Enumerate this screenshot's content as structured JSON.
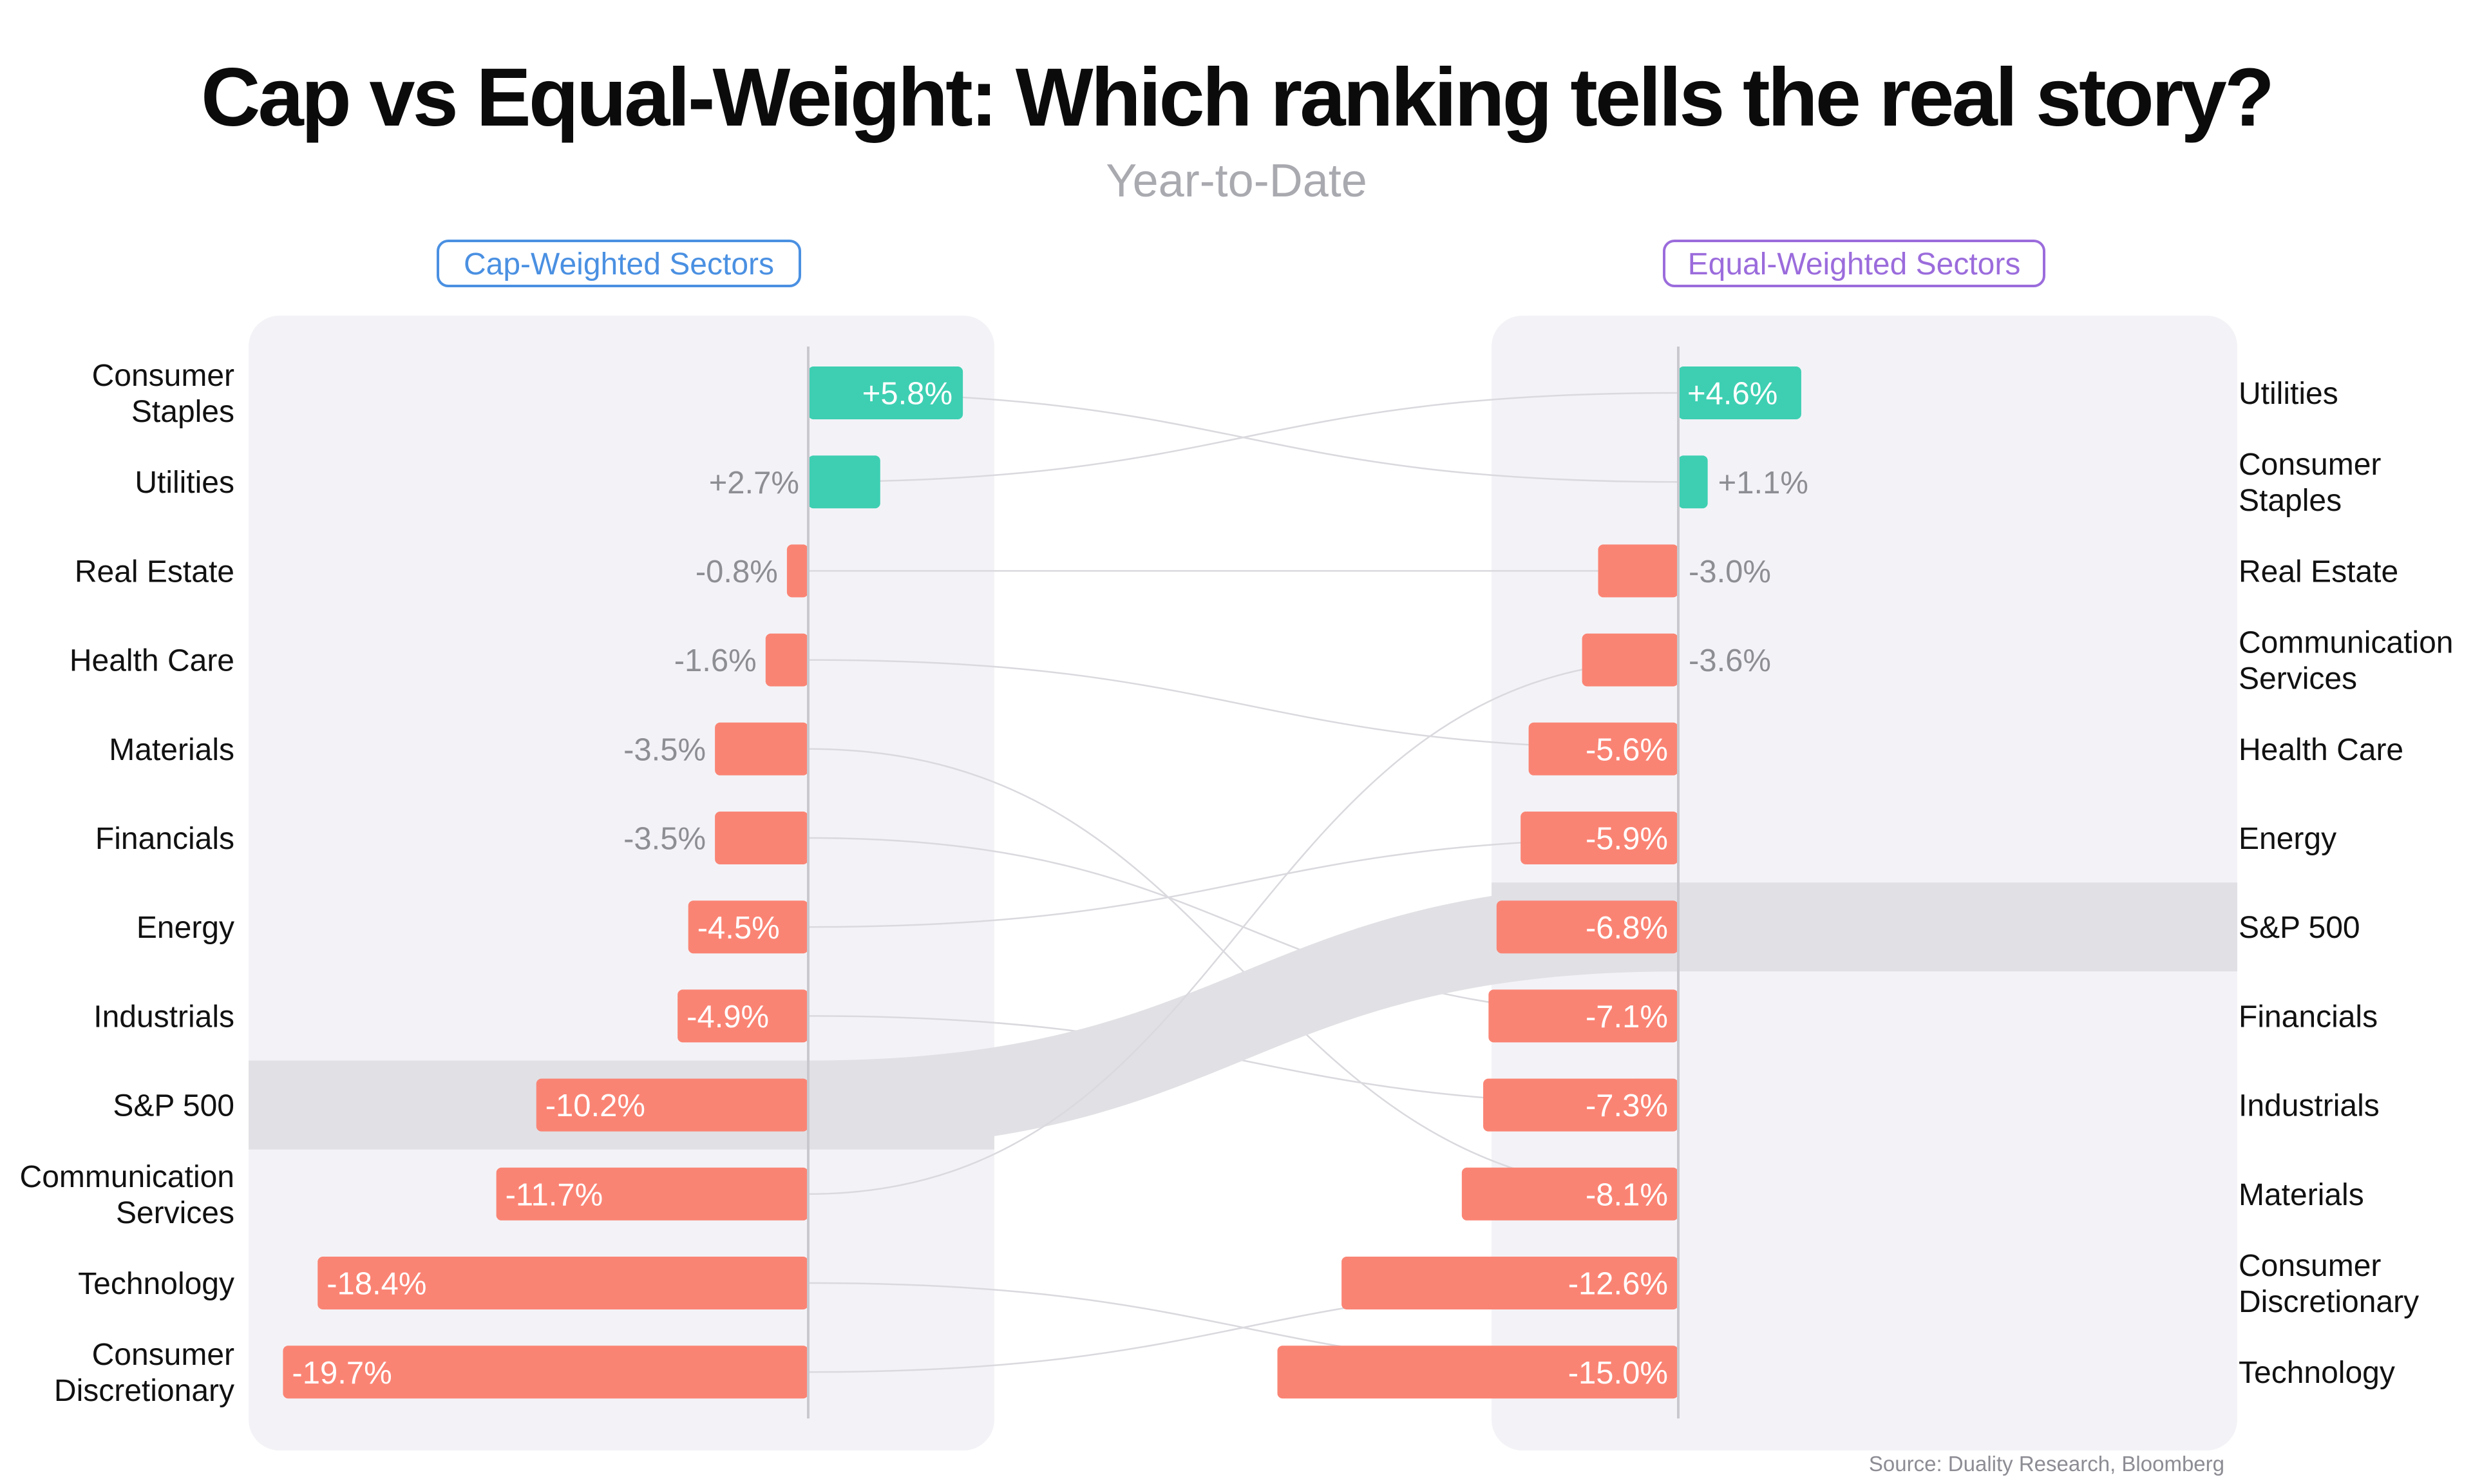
{
  "title": "Cap vs Equal-Weight: Which ranking tells the real story?",
  "subtitle": "Year-to-Date",
  "panels": {
    "cap_label": "Cap-Weighted Sectors",
    "equal_label": "Equal-Weighted Sectors"
  },
  "source": "Source: Duality Research, Bloomberg",
  "colors": {
    "positive": "#3ecfb2",
    "negative": "#fa8474",
    "panel_background": "#f3f3f7",
    "benchmark_band": "#e1e1e5",
    "cap_accent": "#4a90e2",
    "equal_accent": "#9b6cdc"
  },
  "chart_data": [
    {
      "type": "bar",
      "orientation": "horizontal",
      "panel": "Cap-Weighted Sectors",
      "highlight": "S&P 500",
      "categories": [
        "Consumer Staples",
        "Utilities",
        "Real Estate",
        "Health Care",
        "Materials",
        "Financials",
        "Energy",
        "Industrials",
        "S&P 500",
        "Communication Services",
        "Technology",
        "Consumer Discretionary"
      ],
      "values": [
        5.8,
        2.7,
        -0.8,
        -1.6,
        -3.5,
        -3.5,
        -4.5,
        -4.9,
        -10.2,
        -11.7,
        -18.4,
        -19.7
      ],
      "labels": [
        "+5.8%",
        "+2.7%",
        "-0.8%",
        "-1.6%",
        "-3.5%",
        "-3.5%",
        "-4.5%",
        "-4.9%",
        "-10.2%",
        "-11.7%",
        "-18.4%",
        "-19.7%"
      ],
      "xlim": [
        -20,
        6
      ]
    },
    {
      "type": "bar",
      "orientation": "horizontal",
      "panel": "Equal-Weighted Sectors",
      "highlight": "S&P 500",
      "categories": [
        "Utilities",
        "Consumer Staples",
        "Real Estate",
        "Communication Services",
        "Health Care",
        "Energy",
        "S&P 500",
        "Financials",
        "Industrials",
        "Materials",
        "Consumer Discretionary",
        "Technology"
      ],
      "values": [
        4.6,
        1.1,
        -3.0,
        -3.6,
        -5.6,
        -5.9,
        -6.8,
        -7.1,
        -7.3,
        -8.1,
        -12.6,
        -15.0
      ],
      "labels": [
        "+4.6%",
        "+1.1%",
        "-3.0%",
        "-3.6%",
        "-5.6%",
        "-5.9%",
        "-6.8%",
        "-7.1%",
        "-7.3%",
        "-8.1%",
        "-12.6%",
        "-15.0%"
      ],
      "xlim": [
        -15,
        6
      ]
    }
  ]
}
